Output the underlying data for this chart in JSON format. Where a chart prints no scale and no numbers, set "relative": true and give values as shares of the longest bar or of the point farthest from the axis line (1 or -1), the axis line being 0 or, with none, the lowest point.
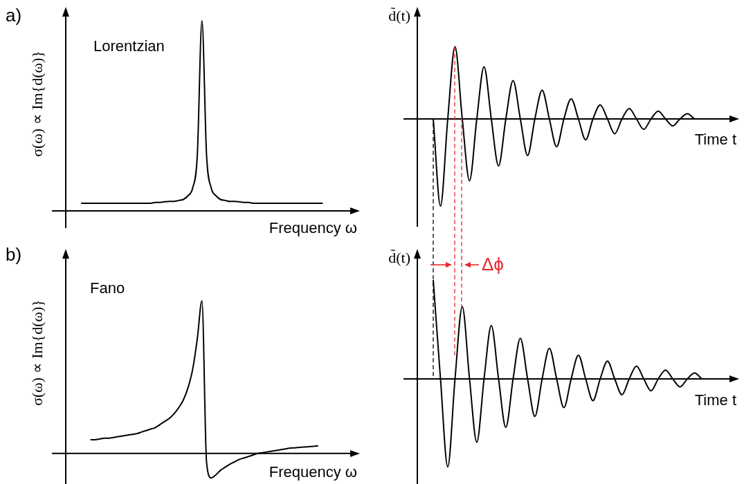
{
  "chart_data": [
    {
      "type": "line",
      "relative": true,
      "xlabel": "Frequency ω",
      "ylabel": "σ(ω) ∝ Im{d(ω)}",
      "annotations": [
        "a)",
        "Lorentzian"
      ],
      "marker": "none",
      "line_style": "solid",
      "categories": [
        null,
        null,
        null,
        null,
        null,
        null,
        null,
        null,
        null,
        null,
        null,
        null,
        null,
        null,
        null,
        null,
        null,
        null,
        null,
        null,
        null,
        null,
        null,
        null,
        null,
        null,
        null,
        null,
        null,
        null,
        null,
        null,
        null,
        null,
        null,
        null,
        null,
        null,
        null,
        null,
        null,
        null,
        null,
        null,
        null,
        null,
        null,
        null,
        null,
        null,
        null,
        null,
        null,
        null,
        null,
        null,
        null,
        null,
        null,
        null,
        null
      ],
      "series": [
        {
          "color": "#000000",
          "values": [
            null,
            null,
            null,
            0.04,
            0.04,
            0.04,
            0.04,
            0.04,
            0.04,
            0.04,
            0.04,
            0.04,
            0.04,
            0.04,
            0.04,
            0.04,
            0.04,
            0.04,
            0.04,
            0.045,
            0.045,
            0.048,
            0.05,
            0.05,
            0.055,
            0.06,
            0.08,
            0.12,
            0.29,
            1,
            0.29,
            0.12,
            0.08,
            0.06,
            0.055,
            0.05,
            0.05,
            0.048,
            0.045,
            0.045,
            0.04,
            0.04,
            0.04,
            0.04,
            0.04,
            0.04,
            0.04,
            0.04,
            0.04,
            0.04,
            0.04,
            0.04,
            0.04,
            0.04,
            0.04,
            0.04,
            null,
            null,
            null,
            null,
            null
          ]
        }
      ]
    },
    {
      "type": "line",
      "relative": true,
      "xlabel": "Time t",
      "ylabel": "d̃(t)",
      "marker": "none",
      "line_style": "solid",
      "categories": [
        null,
        null,
        null,
        null,
        null,
        null,
        null,
        null,
        null,
        null,
        null,
        null,
        null,
        null,
        null,
        null,
        null,
        null,
        null,
        null,
        null,
        null,
        null,
        null,
        null,
        null,
        null,
        null,
        null,
        null,
        null,
        null,
        null,
        null,
        null,
        null,
        null,
        null,
        null,
        null,
        null,
        null,
        null,
        null
      ],
      "series": [
        {
          "color": "#000000",
          "values": [
            null,
            null,
            0,
            -1,
            0,
            0.83,
            0,
            -0.71,
            0,
            0.6,
            0,
            -0.54,
            0,
            0.44,
            0,
            -0.42,
            0,
            0.33,
            0,
            -0.32,
            0,
            0.23,
            0,
            -0.24,
            0,
            0.16,
            0,
            -0.17,
            0,
            0.12,
            0,
            -0.12,
            0,
            0.09,
            0,
            -0.08,
            0,
            0.06,
            0,
            null,
            null,
            null,
            null,
            null
          ]
        }
      ]
    },
    {
      "type": "line",
      "relative": true,
      "xlabel": "Frequency ω",
      "ylabel": "σ(ω) ∝ Im{d(ω)}",
      "annotations": [
        "b)",
        "Fano"
      ],
      "marker": "none",
      "line_style": "solid",
      "categories": [
        null,
        null,
        null,
        null,
        null,
        null,
        null,
        null,
        null,
        null,
        null,
        null,
        null,
        null,
        null,
        null,
        null,
        null,
        null,
        null,
        null,
        null,
        null,
        null,
        null,
        null,
        null,
        null,
        null,
        null,
        null,
        null,
        null,
        null,
        null,
        null,
        null,
        null,
        null,
        null,
        null,
        null,
        null,
        null,
        null,
        null,
        null,
        null,
        null,
        null,
        null,
        null,
        null,
        null,
        null,
        null,
        null,
        null,
        null,
        null,
        null
      ],
      "series": [
        {
          "color": "#000000",
          "values": [
            null,
            null,
            null,
            null,
            null,
            0.09,
            0.09,
            0.095,
            0.1,
            0.1,
            0.105,
            0.11,
            0.115,
            0.12,
            0.125,
            0.13,
            0.14,
            0.15,
            0.16,
            0.17,
            0.19,
            0.21,
            0.23,
            0.26,
            0.3,
            0.35,
            0.43,
            0.55,
            0.75,
            1,
            -0.06,
            -0.16,
            -0.14,
            -0.11,
            -0.09,
            -0.07,
            -0.055,
            -0.04,
            -0.03,
            -0.02,
            -0.01,
            0,
            0.005,
            0.01,
            0.015,
            0.02,
            0.025,
            0.03,
            0.035,
            0.037,
            0.04,
            0.042,
            0.045,
            0.047,
            0.05,
            null,
            null,
            null,
            null,
            null,
            null
          ]
        }
      ]
    },
    {
      "type": "line",
      "relative": true,
      "xlabel": "Time t",
      "ylabel": "d̃(t)",
      "annotations": [
        "Δϕ"
      ],
      "marker": "none",
      "line_style": "solid",
      "categories": [
        null,
        null,
        null,
        null,
        null,
        null,
        null,
        null,
        null,
        null,
        null,
        null,
        null,
        null,
        null,
        null,
        null,
        null,
        null,
        null,
        null,
        null,
        null,
        null,
        null,
        null,
        null,
        null,
        null,
        null,
        null,
        null,
        null,
        null,
        null,
        null,
        null,
        null,
        null,
        null,
        null,
        null,
        null,
        null
      ],
      "series": [
        {
          "color": "#000000",
          "values": [
            null,
            null,
            1,
            0,
            -0.89,
            0,
            0.73,
            0,
            -0.64,
            0,
            0.54,
            0,
            -0.49,
            0,
            0.41,
            0,
            -0.38,
            0,
            0.31,
            0,
            -0.29,
            0,
            0.24,
            0,
            -0.22,
            0,
            0.18,
            0,
            -0.16,
            0,
            0.13,
            0,
            -0.12,
            0,
            0.09,
            0,
            -0.08,
            0,
            0.06,
            0,
            null,
            null,
            null,
            null
          ]
        }
      ]
    }
  ]
}
